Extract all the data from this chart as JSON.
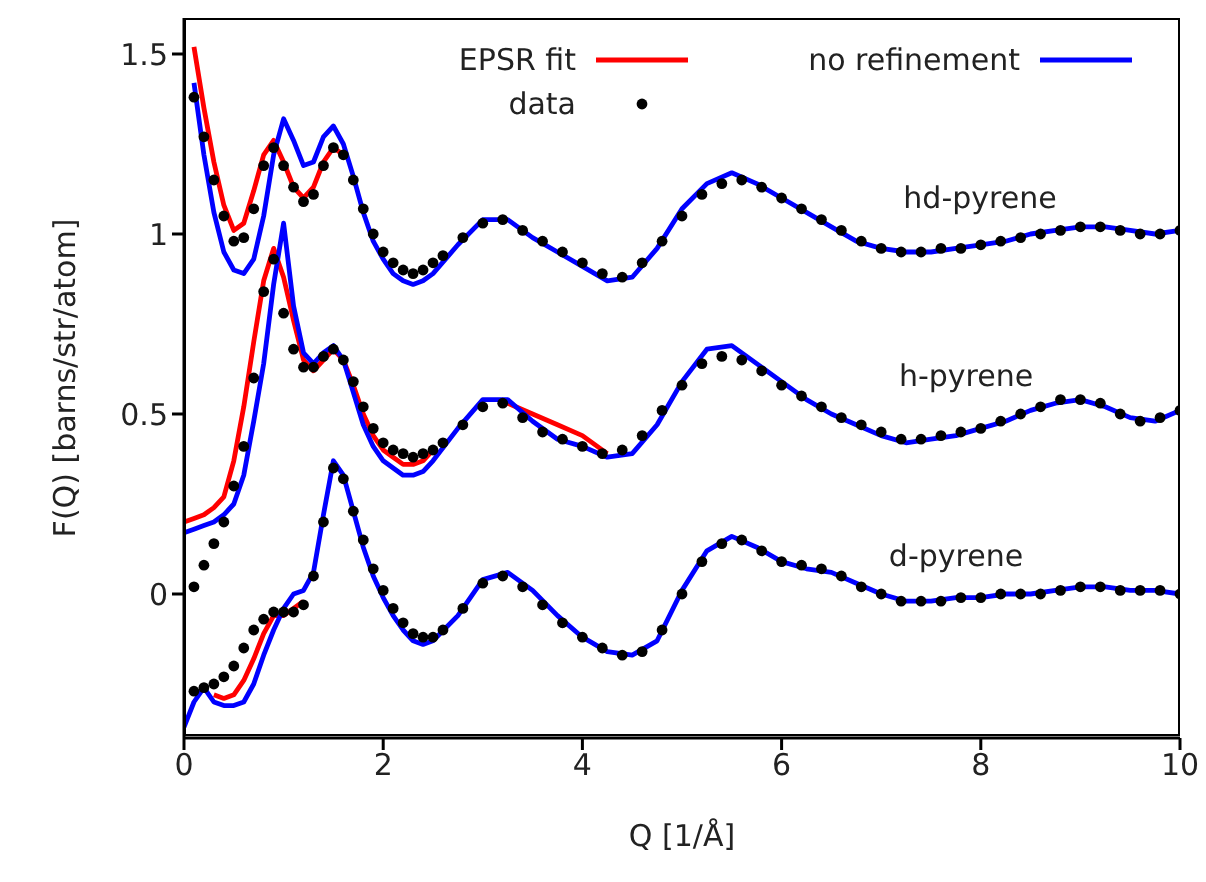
{
  "chart_data": {
    "type": "line",
    "xlabel": "Q [1/Å]",
    "ylabel": "F(Q) [barns/str/atom]",
    "xlim": [
      0,
      10
    ],
    "ylim": [
      -0.4,
      1.6
    ],
    "xticks": [
      0,
      2,
      4,
      6,
      8,
      10
    ],
    "yticks": [
      0,
      0.5,
      1,
      1.5
    ],
    "grid": false,
    "legend": "top right",
    "line_style": "solid",
    "annotations": [
      "hd-pyrene",
      "h-pyrene",
      "d-pyrene"
    ],
    "series": [
      {
        "name": "EPSR fit",
        "color": "#ff0000",
        "x": [
          0.1,
          0.2,
          0.3,
          0.4,
          0.5,
          0.6,
          0.7,
          0.8,
          0.9,
          1.0,
          1.1,
          1.2,
          1.3,
          1.4,
          1.5,
          1.6
        ],
        "values": [
          1.52,
          1.35,
          1.2,
          1.08,
          1.01,
          1.03,
          1.12,
          1.22,
          1.26,
          1.2,
          1.13,
          1.1,
          1.13,
          1.2,
          1.24,
          1.22
        ]
      },
      {
        "color": "#ff0000",
        "x": [
          0,
          0.1,
          0.2,
          0.3,
          0.4,
          0.5,
          0.6,
          0.7,
          0.8,
          0.9,
          1.0,
          1.1,
          1.2,
          1.3,
          1.4,
          1.5,
          1.6,
          1.7,
          1.8,
          1.9,
          2.0,
          2.1,
          2.2,
          2.3,
          2.4,
          2.5
        ],
        "values": [
          0.2,
          0.21,
          0.22,
          0.24,
          0.27,
          0.37,
          0.52,
          0.7,
          0.87,
          0.96,
          0.88,
          0.76,
          0.65,
          0.62,
          0.65,
          0.68,
          0.65,
          0.58,
          0.5,
          0.44,
          0.4,
          0.38,
          0.36,
          0.36,
          0.37,
          0.4
        ]
      },
      {
        "color": "#ff0000",
        "x": [
          3.25,
          3.5,
          3.75,
          4.0,
          4.25
        ],
        "values": [
          0.53,
          0.5,
          0.47,
          0.44,
          0.39
        ]
      },
      {
        "color": "#ff0000",
        "x": [
          0.3,
          0.4,
          0.5,
          0.6,
          0.7,
          0.8,
          0.9,
          1.0,
          1.1,
          1.2
        ],
        "values": [
          -0.28,
          -0.29,
          -0.28,
          -0.24,
          -0.18,
          -0.11,
          -0.06,
          -0.06,
          -0.04,
          -0.02
        ]
      },
      {
        "name": "no refinement",
        "color": "#0000ff",
        "x": [
          0.1,
          0.2,
          0.3,
          0.4,
          0.5,
          0.6,
          0.7,
          0.8,
          0.9,
          1.0,
          1.1,
          1.2,
          1.3,
          1.4,
          1.5,
          1.6,
          1.7,
          1.8,
          1.9,
          2.0,
          2.1,
          2.2,
          2.3,
          2.4,
          2.5,
          2.75,
          3.0,
          3.25,
          3.5,
          3.75,
          4.0,
          4.25,
          4.5,
          4.75,
          5.0,
          5.25,
          5.5,
          5.75,
          6.0,
          6.25,
          6.5,
          6.75,
          7.0,
          7.25,
          7.5,
          7.75,
          8.0,
          8.25,
          8.5,
          8.75,
          9.0,
          9.25,
          9.5,
          9.75,
          10
        ],
        "values": [
          1.42,
          1.22,
          1.06,
          0.95,
          0.9,
          0.89,
          0.93,
          1.05,
          1.22,
          1.32,
          1.26,
          1.19,
          1.2,
          1.27,
          1.3,
          1.25,
          1.16,
          1.06,
          0.98,
          0.93,
          0.89,
          0.87,
          0.86,
          0.87,
          0.89,
          0.97,
          1.04,
          1.04,
          0.99,
          0.95,
          0.91,
          0.87,
          0.88,
          0.96,
          1.07,
          1.14,
          1.17,
          1.14,
          1.1,
          1.06,
          1.02,
          0.98,
          0.96,
          0.95,
          0.95,
          0.96,
          0.97,
          0.98,
          1.0,
          1.01,
          1.02,
          1.02,
          1.01,
          1.0,
          1.01
        ]
      },
      {
        "color": "#0000ff",
        "x": [
          0,
          0.1,
          0.2,
          0.3,
          0.4,
          0.5,
          0.6,
          0.7,
          0.8,
          0.9,
          1.0,
          1.1,
          1.2,
          1.3,
          1.4,
          1.5,
          1.6,
          1.7,
          1.8,
          1.9,
          2.0,
          2.1,
          2.2,
          2.3,
          2.4,
          2.5,
          2.75,
          3.0,
          3.25,
          3.5,
          3.75,
          4.0,
          4.25,
          4.5,
          4.75,
          5.0,
          5.25,
          5.5,
          5.75,
          6.0,
          6.25,
          6.5,
          6.75,
          7.0,
          7.25,
          7.5,
          7.75,
          8.0,
          8.25,
          8.5,
          8.75,
          9.0,
          9.25,
          9.5,
          9.75,
          10
        ],
        "values": [
          0.17,
          0.18,
          0.19,
          0.2,
          0.22,
          0.25,
          0.33,
          0.48,
          0.64,
          0.86,
          1.03,
          0.8,
          0.67,
          0.64,
          0.67,
          0.69,
          0.65,
          0.56,
          0.47,
          0.41,
          0.37,
          0.35,
          0.33,
          0.33,
          0.34,
          0.37,
          0.46,
          0.54,
          0.54,
          0.48,
          0.43,
          0.41,
          0.38,
          0.39,
          0.47,
          0.59,
          0.68,
          0.69,
          0.64,
          0.59,
          0.54,
          0.5,
          0.47,
          0.44,
          0.42,
          0.43,
          0.44,
          0.46,
          0.48,
          0.51,
          0.53,
          0.54,
          0.52,
          0.49,
          0.48,
          0.51
        ]
      },
      {
        "color": "#0000ff",
        "x": [
          0,
          0.1,
          0.2,
          0.3,
          0.4,
          0.5,
          0.6,
          0.7,
          0.8,
          0.9,
          1.0,
          1.1,
          1.2,
          1.3,
          1.4,
          1.5,
          1.6,
          1.7,
          1.8,
          1.9,
          2.0,
          2.1,
          2.2,
          2.3,
          2.4,
          2.5,
          2.75,
          3.0,
          3.25,
          3.5,
          3.75,
          4.0,
          4.25,
          4.5,
          4.75,
          5.0,
          5.25,
          5.5,
          5.75,
          6.0,
          6.25,
          6.5,
          6.75,
          7.0,
          7.25,
          7.5,
          7.75,
          8.0,
          8.25,
          8.5,
          8.75,
          9.0,
          9.25,
          9.5,
          9.75,
          10
        ],
        "values": [
          -0.37,
          -0.3,
          -0.26,
          -0.3,
          -0.31,
          -0.31,
          -0.3,
          -0.25,
          -0.17,
          -0.1,
          -0.04,
          0.0,
          0.01,
          0.06,
          0.22,
          0.37,
          0.33,
          0.23,
          0.13,
          0.05,
          -0.01,
          -0.06,
          -0.1,
          -0.13,
          -0.14,
          -0.13,
          -0.06,
          0.04,
          0.06,
          0.01,
          -0.06,
          -0.12,
          -0.16,
          -0.17,
          -0.13,
          0.01,
          0.12,
          0.16,
          0.13,
          0.09,
          0.07,
          0.06,
          0.03,
          0.0,
          -0.02,
          -0.02,
          -0.01,
          -0.01,
          0.0,
          0.0,
          0.01,
          0.02,
          0.02,
          0.01,
          0.01,
          0.0
        ]
      },
      {
        "name": "data",
        "type": "scatter",
        "marker": "circle",
        "color": "#000000",
        "x": [
          0.1,
          0.2,
          0.3,
          0.4,
          0.5,
          0.6,
          0.7,
          0.8,
          0.9,
          1.0,
          1.1,
          1.2,
          1.3,
          1.4,
          1.5,
          1.6,
          1.7,
          1.8,
          1.9,
          2.0,
          2.1,
          2.2,
          2.3,
          2.4,
          2.5,
          2.6,
          2.8,
          3.0,
          3.2,
          3.4,
          3.6,
          3.8,
          4.0,
          4.2,
          4.4,
          4.6,
          4.8,
          5.0,
          5.2,
          5.4,
          5.6,
          5.8,
          6.0,
          6.2,
          6.4,
          6.6,
          6.8,
          7.0,
          7.2,
          7.4,
          7.6,
          7.8,
          8.0,
          8.2,
          8.4,
          8.6,
          8.8,
          9.0,
          9.2,
          9.4,
          9.6,
          9.8,
          10.0
        ],
        "values": [
          1.38,
          1.27,
          1.15,
          1.05,
          0.98,
          0.99,
          1.07,
          1.19,
          1.24,
          1.19,
          1.13,
          1.09,
          1.11,
          1.19,
          1.24,
          1.22,
          1.15,
          1.07,
          1.0,
          0.95,
          0.92,
          0.9,
          0.89,
          0.9,
          0.92,
          0.94,
          0.99,
          1.03,
          1.04,
          1.01,
          0.98,
          0.95,
          0.92,
          0.89,
          0.88,
          0.92,
          0.98,
          1.05,
          1.11,
          1.14,
          1.15,
          1.13,
          1.1,
          1.07,
          1.04,
          1.01,
          0.98,
          0.96,
          0.95,
          0.95,
          0.96,
          0.96,
          0.97,
          0.98,
          0.99,
          1.0,
          1.01,
          1.02,
          1.02,
          1.01,
          1.0,
          1.0,
          1.01
        ]
      },
      {
        "type": "scatter",
        "marker": "circle",
        "color": "#000000",
        "x": [
          0.1,
          0.2,
          0.3,
          0.4,
          0.5,
          0.6,
          0.7,
          0.8,
          0.9,
          1.0,
          1.1,
          1.2,
          1.3,
          1.4,
          1.5,
          1.6,
          1.7,
          1.8,
          1.9,
          2.0,
          2.1,
          2.2,
          2.3,
          2.4,
          2.5,
          2.6,
          2.8,
          3.0,
          3.2,
          3.4,
          3.6,
          3.8,
          4.0,
          4.2,
          4.4,
          4.6,
          4.8,
          5.0,
          5.2,
          5.4,
          5.6,
          5.8,
          6.0,
          6.2,
          6.4,
          6.6,
          6.8,
          7.0,
          7.2,
          7.4,
          7.6,
          7.8,
          8.0,
          8.2,
          8.4,
          8.6,
          8.8,
          9.0,
          9.2,
          9.4,
          9.6,
          9.8,
          10.0
        ],
        "values": [
          0.02,
          0.08,
          0.14,
          0.2,
          0.3,
          0.41,
          0.6,
          0.84,
          0.93,
          0.78,
          0.68,
          0.63,
          0.63,
          0.66,
          0.68,
          0.65,
          0.59,
          0.52,
          0.46,
          0.42,
          0.4,
          0.39,
          0.38,
          0.39,
          0.4,
          0.42,
          0.47,
          0.52,
          0.53,
          0.49,
          0.45,
          0.43,
          0.41,
          0.39,
          0.4,
          0.44,
          0.51,
          0.58,
          0.64,
          0.66,
          0.65,
          0.62,
          0.58,
          0.55,
          0.52,
          0.49,
          0.47,
          0.45,
          0.43,
          0.43,
          0.44,
          0.45,
          0.46,
          0.48,
          0.5,
          0.52,
          0.54,
          0.54,
          0.53,
          0.5,
          0.48,
          0.49,
          0.51
        ]
      },
      {
        "type": "scatter",
        "marker": "circle",
        "color": "#000000",
        "x": [
          0.1,
          0.2,
          0.3,
          0.4,
          0.5,
          0.6,
          0.7,
          0.8,
          0.9,
          1.0,
          1.1,
          1.2,
          1.3,
          1.4,
          1.5,
          1.6,
          1.7,
          1.8,
          1.9,
          2.0,
          2.1,
          2.2,
          2.3,
          2.4,
          2.5,
          2.6,
          2.8,
          3.0,
          3.2,
          3.4,
          3.6,
          3.8,
          4.0,
          4.2,
          4.4,
          4.6,
          4.8,
          5.0,
          5.2,
          5.4,
          5.6,
          5.8,
          6.0,
          6.2,
          6.4,
          6.6,
          6.8,
          7.0,
          7.2,
          7.4,
          7.6,
          7.8,
          8.0,
          8.2,
          8.4,
          8.6,
          8.8,
          9.0,
          9.2,
          9.4,
          9.6,
          9.8,
          10.0
        ],
        "values": [
          -0.27,
          -0.26,
          -0.25,
          -0.23,
          -0.2,
          -0.15,
          -0.1,
          -0.07,
          -0.05,
          -0.05,
          -0.05,
          -0.03,
          0.05,
          0.2,
          0.35,
          0.32,
          0.23,
          0.15,
          0.07,
          0.01,
          -0.04,
          -0.08,
          -0.11,
          -0.12,
          -0.12,
          -0.1,
          -0.04,
          0.03,
          0.05,
          0.02,
          -0.03,
          -0.08,
          -0.12,
          -0.15,
          -0.17,
          -0.16,
          -0.1,
          0.0,
          0.09,
          0.14,
          0.15,
          0.12,
          0.09,
          0.08,
          0.07,
          0.05,
          0.02,
          0.0,
          -0.02,
          -0.02,
          -0.02,
          -0.01,
          -0.01,
          0.0,
          0.0,
          0.0,
          0.01,
          0.02,
          0.02,
          0.01,
          0.01,
          0.01,
          0.0
        ]
      }
    ]
  }
}
